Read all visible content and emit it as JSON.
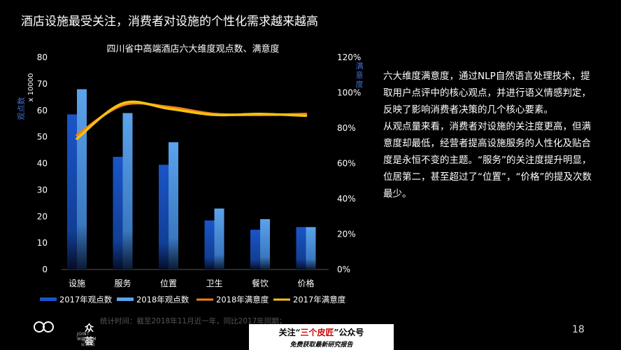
{
  "slide": {
    "title": "酒店设施最受关注，消费者对设施的个性化需求越来越高",
    "page_number": "18"
  },
  "description": {
    "p1": "六大维度满意度，通过NLP自然语言处理技术，提取用户点评中的核心观点，并进行语义情感判定，反映了影响消费者决策的几个核心要素。",
    "p2": "从观点量来看，消费者对设施的关注度更高，但满意度却最低，经营者提高设施服务的人性化及贴合度是永恒不变的主题。“服务”的关注度提升明显，位居第二，甚至超过了“位置”，“价格”的提及次数最少。"
  },
  "footnote": "统计时间：截至2018年11月近一年，同比2017年同期；",
  "logo": {
    "name": "众荟",
    "english": "JOINT WISDOM",
    "sub": "酒店智能解决之道"
  },
  "banner": {
    "pre": "关注“",
    "highlight": "三个皮匠",
    "post": "”公众号",
    "line2": "免费获取最新研究报告"
  },
  "chart_data": {
    "type": "bar",
    "title": "四川省中高端酒店六大维度观点数、满意度",
    "categories": [
      "设施",
      "服务",
      "位置",
      "卫生",
      "餐饮",
      "价格"
    ],
    "left_axis": {
      "label": "观点数",
      "unit": "x 10000",
      "range": [
        0,
        80
      ],
      "ticks": [
        "0",
        "10",
        "20",
        "30",
        "40",
        "50",
        "60",
        "70",
        "80"
      ]
    },
    "right_axis": {
      "label": "满意度",
      "range": [
        0,
        1.2
      ],
      "ticks": [
        "0%",
        "20%",
        "40%",
        "60%",
        "80%",
        "100%",
        "120%"
      ]
    },
    "series": [
      {
        "name": "2017年观点数",
        "type": "bar",
        "axis": "left",
        "values": [
          58.5,
          42.5,
          39.5,
          18.5,
          15,
          16
        ],
        "color": "#1a55c8"
      },
      {
        "name": "2018年观点数",
        "type": "bar",
        "axis": "left",
        "values": [
          68,
          59,
          48,
          23,
          19,
          16
        ],
        "color": "#5ba3ec"
      },
      {
        "name": "2018年满意度",
        "type": "line",
        "axis": "right",
        "values": [
          0.76,
          0.93,
          0.92,
          0.88,
          0.875,
          0.88
        ],
        "color": "#f07e1e"
      },
      {
        "name": "2017年满意度",
        "type": "line",
        "axis": "right",
        "values": [
          0.74,
          0.94,
          0.91,
          0.875,
          0.88,
          0.87
        ],
        "color": "#f5c20f"
      }
    ],
    "grid": false,
    "legend": "bottom"
  }
}
